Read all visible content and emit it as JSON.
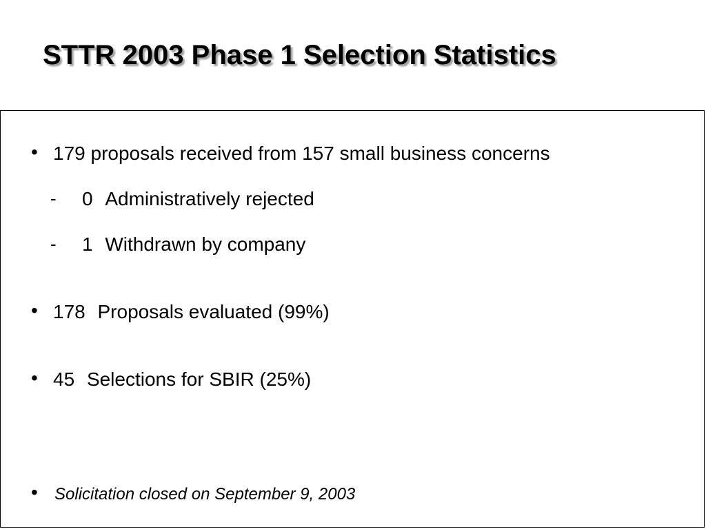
{
  "slide": {
    "title": "STTR 2003 Phase 1 Selection Statistics",
    "bullets": [
      {
        "marker": "•",
        "text": "179 proposals received from 157 small business concerns",
        "subitems": [
          {
            "marker": "-",
            "count": "0",
            "text": "Administratively rejected"
          },
          {
            "marker": "-",
            "count": "1",
            "text": "Withdrawn by company"
          }
        ]
      },
      {
        "marker": "•",
        "count": "178",
        "text": "Proposals evaluated (99%)"
      },
      {
        "marker": "•",
        "count": "45",
        "text": "Selections for SBIR (25%)"
      },
      {
        "marker": "•",
        "text": "Solicitation closed on September 9, 2003"
      }
    ]
  }
}
